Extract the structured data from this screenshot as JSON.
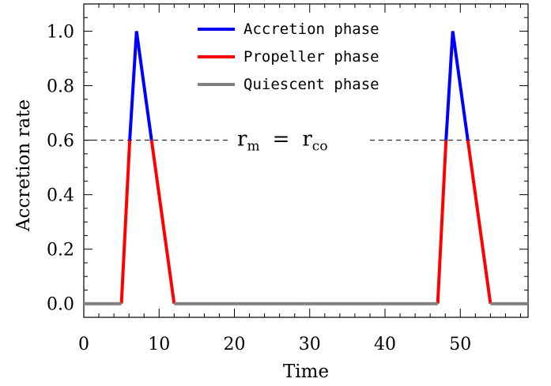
{
  "chart_data": {
    "type": "line",
    "xlabel": "Time",
    "ylabel": "Accretion rate",
    "xlim": [
      0,
      59
    ],
    "ylim": [
      -0.05,
      1.1
    ],
    "x_ticks": [
      0,
      10,
      20,
      30,
      40,
      50
    ],
    "x_tick_labels": [
      "0",
      "10",
      "20",
      "30",
      "40",
      "50"
    ],
    "y_ticks": [
      0.0,
      0.2,
      0.4,
      0.6,
      0.8,
      1.0
    ],
    "y_tick_labels": [
      "0.0",
      "0.2",
      "0.4",
      "0.6",
      "0.8",
      "1.0"
    ],
    "threshold": {
      "y": 0.6,
      "style": "dashed",
      "label_main_left": "r",
      "label_sub_left": "m",
      "label_equals": "=",
      "label_main_right": "r",
      "label_sub_right": "co"
    },
    "legend_position": "top-center",
    "series": [
      {
        "name": "Accretion phase",
        "color": "#0000ff",
        "segments": [
          [
            [
              6.1,
              0.6
            ],
            [
              7,
              1.0
            ],
            [
              9,
              0.6
            ]
          ],
          [
            [
              48.1,
              0.6
            ],
            [
              49,
              1.0
            ],
            [
              51,
              0.6
            ]
          ]
        ]
      },
      {
        "name": "Propeller phase",
        "color": "#ff0000",
        "segments": [
          [
            [
              5,
              0.0
            ],
            [
              6.1,
              0.6
            ]
          ],
          [
            [
              9,
              0.6
            ],
            [
              12,
              0.0
            ]
          ],
          [
            [
              47,
              0.0
            ],
            [
              48.1,
              0.6
            ]
          ],
          [
            [
              51,
              0.6
            ],
            [
              54,
              0.0
            ]
          ]
        ]
      },
      {
        "name": "Quiescent phase",
        "color": "#808080",
        "segments": [
          [
            [
              0,
              0.0
            ],
            [
              5,
              0.0
            ]
          ],
          [
            [
              12,
              0.0
            ],
            [
              47,
              0.0
            ]
          ],
          [
            [
              54,
              0.0
            ],
            [
              59,
              0.0
            ]
          ]
        ]
      }
    ]
  }
}
